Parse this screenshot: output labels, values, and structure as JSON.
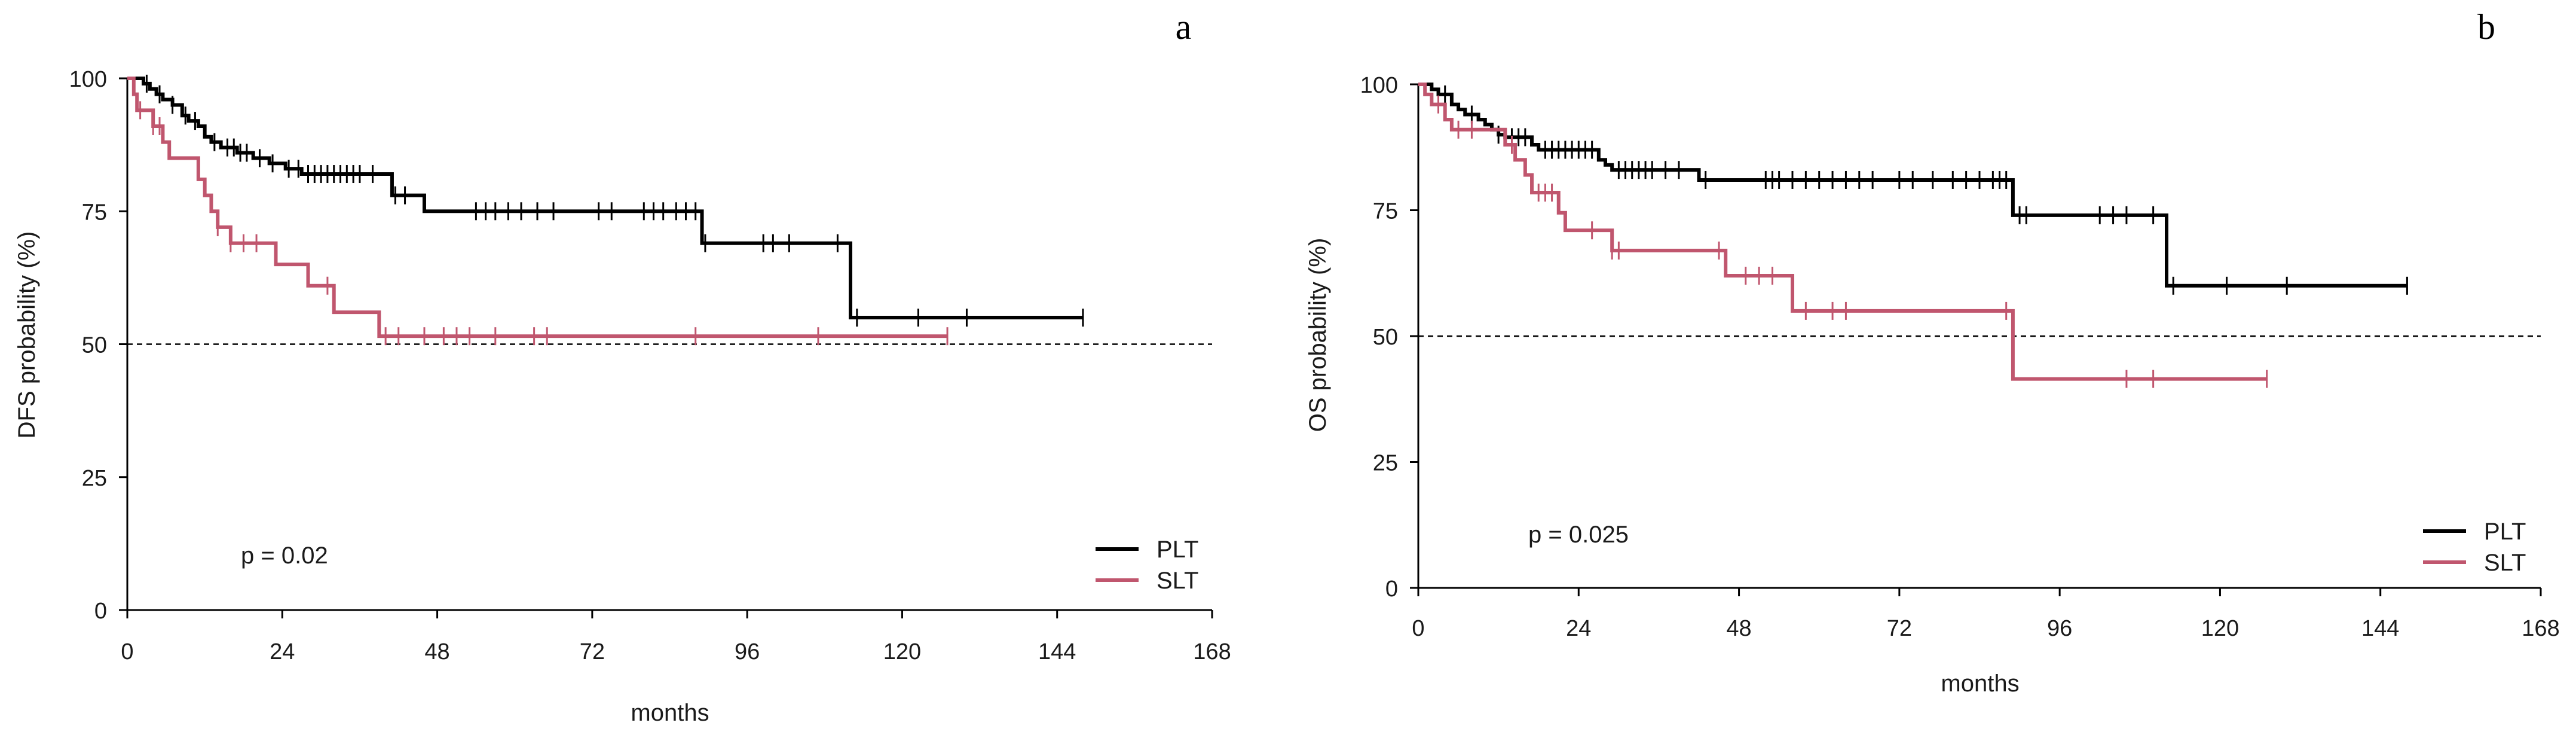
{
  "chart_data": [
    {
      "type": "line",
      "panel_label": "a",
      "xlabel": "months",
      "ylabel": "DFS probability (%)",
      "xlim": [
        0,
        168
      ],
      "ylim": [
        0,
        100
      ],
      "xticks": [
        0,
        24,
        48,
        72,
        96,
        120,
        144,
        168
      ],
      "yticks": [
        0,
        25,
        50,
        75,
        100
      ],
      "reference_line_y": 50,
      "annotation": "p = 0.02",
      "legend_position": "bottom-right",
      "series": [
        {
          "name": "PLT",
          "color": "#000000",
          "steps": [
            [
              0,
              100
            ],
            [
              1.5,
              100
            ],
            [
              2.5,
              99
            ],
            [
              3.5,
              98
            ],
            [
              4.5,
              97
            ],
            [
              5.5,
              96
            ],
            [
              7,
              95
            ],
            [
              8.5,
              93
            ],
            [
              9.5,
              92
            ],
            [
              11,
              91
            ],
            [
              12,
              89
            ],
            [
              13,
              88
            ],
            [
              14.5,
              87
            ],
            [
              17,
              86
            ],
            [
              19.5,
              85
            ],
            [
              22,
              84
            ],
            [
              24.5,
              83
            ],
            [
              27,
              82
            ],
            [
              41,
              78
            ],
            [
              46,
              75
            ],
            [
              89,
              69
            ],
            [
              112,
              55
            ],
            [
              148,
              55
            ]
          ],
          "censored": [
            3,
            5,
            7,
            9,
            10.5,
            13.5,
            15.5,
            16.5,
            17.5,
            18.5,
            20.5,
            22.5,
            25,
            26.5,
            28,
            29,
            30,
            31,
            32,
            33,
            34,
            35,
            36,
            38,
            41.5,
            43,
            54,
            55.5,
            57,
            59,
            61,
            63.5,
            66,
            73,
            75,
            80,
            81.5,
            83,
            85,
            86.5,
            88,
            89.5,
            98.5,
            100,
            102.5,
            110,
            113,
            122.5,
            130,
            148
          ]
        },
        {
          "name": "SLT",
          "color": "#c0566e",
          "steps": [
            [
              0,
              100
            ],
            [
              1,
              97
            ],
            [
              1.5,
              94
            ],
            [
              4,
              91
            ],
            [
              5.5,
              88
            ],
            [
              6.5,
              85
            ],
            [
              11,
              81
            ],
            [
              12,
              78
            ],
            [
              13,
              75
            ],
            [
              14,
              72
            ],
            [
              16,
              69
            ],
            [
              23,
              65
            ],
            [
              28,
              61
            ],
            [
              32,
              56
            ],
            [
              39,
              51.5
            ],
            [
              127,
              51.5
            ]
          ],
          "censored": [
            2,
            4,
            5,
            14,
            16,
            18,
            20,
            31,
            40,
            42,
            46,
            49,
            51,
            53,
            57,
            63,
            65,
            88,
            107,
            127
          ]
        }
      ]
    },
    {
      "type": "line",
      "panel_label": "b",
      "xlabel": "months",
      "ylabel": "OS probability (%)",
      "xlim": [
        0,
        168
      ],
      "ylim": [
        0,
        100
      ],
      "xticks": [
        0,
        24,
        48,
        72,
        96,
        120,
        144,
        168
      ],
      "yticks": [
        0,
        25,
        50,
        75,
        100
      ],
      "reference_line_y": 50,
      "annotation": "p = 0.025",
      "legend_position": "bottom-right",
      "series": [
        {
          "name": "PLT",
          "color": "#000000",
          "steps": [
            [
              0,
              100
            ],
            [
              2,
              99
            ],
            [
              3,
              98
            ],
            [
              5,
              96
            ],
            [
              6,
              95
            ],
            [
              7,
              94
            ],
            [
              9,
              93
            ],
            [
              10,
              92
            ],
            [
              11,
              91
            ],
            [
              12,
              90
            ],
            [
              13,
              89.5
            ],
            [
              17,
              88
            ],
            [
              18,
              87
            ],
            [
              27,
              85
            ],
            [
              28,
              84
            ],
            [
              29,
              83
            ],
            [
              42,
              81
            ],
            [
              89,
              74
            ],
            [
              112,
              60
            ],
            [
              148,
              60
            ]
          ],
          "censored": [
            4,
            8,
            12,
            13,
            14,
            15,
            16,
            19,
            20,
            21,
            22,
            23,
            24,
            25,
            26,
            30,
            31,
            32,
            33,
            34,
            35,
            37,
            39,
            43,
            52,
            53,
            54,
            56,
            58,
            60,
            62,
            64,
            66,
            68,
            72,
            74,
            77,
            80,
            82,
            84,
            86,
            87,
            88,
            90,
            91,
            102,
            104,
            106,
            110,
            113,
            121,
            130,
            148
          ]
        },
        {
          "name": "SLT",
          "color": "#c0566e",
          "steps": [
            [
              0,
              100
            ],
            [
              1,
              98
            ],
            [
              2,
              96
            ],
            [
              4,
              93
            ],
            [
              5,
              91
            ],
            [
              13,
              88
            ],
            [
              14.5,
              85
            ],
            [
              16,
              82
            ],
            [
              17,
              78.5
            ],
            [
              21,
              74.5
            ],
            [
              22,
              71
            ],
            [
              29,
              67
            ],
            [
              46,
              62
            ],
            [
              56,
              55
            ],
            [
              89,
              41.5
            ],
            [
              127,
              41.5
            ]
          ],
          "censored": [
            3,
            6,
            8,
            14,
            18,
            19,
            20,
            26,
            29,
            30,
            45,
            49,
            51,
            53,
            58,
            62,
            64,
            88,
            106,
            110,
            127
          ]
        }
      ]
    }
  ]
}
